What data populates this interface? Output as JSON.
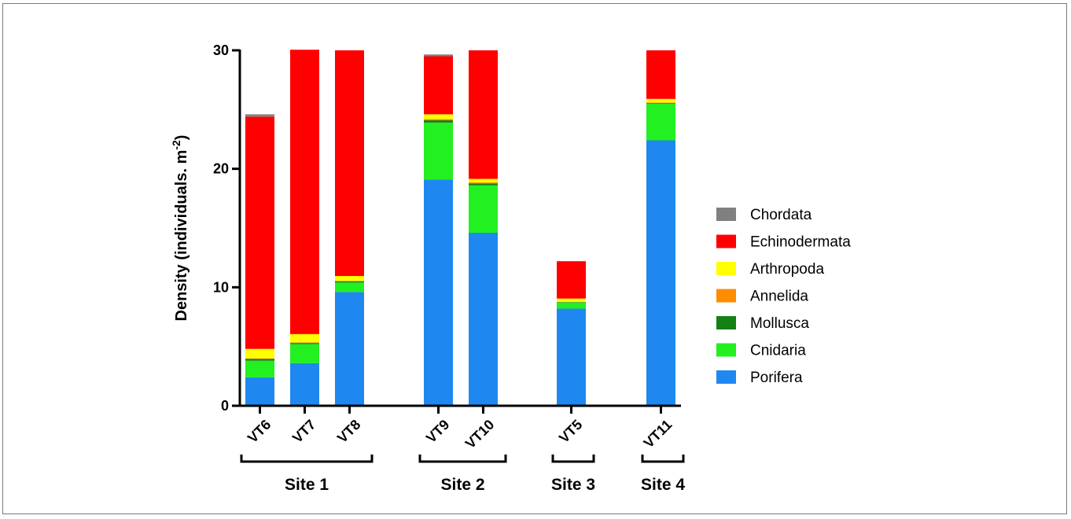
{
  "chart_data": {
    "type": "bar",
    "stacked": true,
    "ylabel_main": "Density (individuals. m",
    "ylabel_sup": "-2",
    "ylabel_end": ")",
    "ylim": [
      0,
      30
    ],
    "yticks": [
      0,
      10,
      20,
      30
    ],
    "categories": [
      "VT6",
      "VT7",
      "VT8",
      "VT9",
      "VT10",
      "VT5",
      "VT11"
    ],
    "groups": [
      {
        "label": "Site 1",
        "categories": [
          "VT6",
          "VT7",
          "VT8"
        ]
      },
      {
        "label": "Site 2",
        "categories": [
          "VT9",
          "VT10"
        ]
      },
      {
        "label": "Site 3",
        "categories": [
          "VT5"
        ]
      },
      {
        "label": "Site 4",
        "categories": [
          "VT11"
        ]
      }
    ],
    "series": [
      {
        "name": "Porifera",
        "color": "#1e88f0",
        "values": [
          2.4,
          3.6,
          9.6,
          19.1,
          14.6,
          8.2,
          22.4
        ]
      },
      {
        "name": "Cnidaria",
        "color": "#22f021",
        "values": [
          1.4,
          1.6,
          0.8,
          4.8,
          4.0,
          0.5,
          3.1
        ]
      },
      {
        "name": "Mollusca",
        "color": "#158015",
        "values": [
          0.15,
          0.1,
          0.1,
          0.2,
          0.15,
          0.05,
          0.05
        ]
      },
      {
        "name": "Annelida",
        "color": "#ff8c00",
        "values": [
          0.05,
          0.05,
          0.05,
          0.1,
          0.1,
          0.0,
          0.05
        ]
      },
      {
        "name": "Arthropoda",
        "color": "#ffff00",
        "values": [
          0.8,
          0.7,
          0.4,
          0.4,
          0.3,
          0.3,
          0.3
        ]
      },
      {
        "name": "Echinodermata",
        "color": "#ff0000",
        "values": [
          19.6,
          24.0,
          19.05,
          4.9,
          10.85,
          3.15,
          4.1
        ]
      },
      {
        "name": "Chordata",
        "color": "#808080",
        "values": [
          0.2,
          0.0,
          0.0,
          0.15,
          0.0,
          0.0,
          0.0
        ]
      }
    ],
    "legend": [
      "Chordata",
      "Echinodermata",
      "Arthropoda",
      "Annelida",
      "Mollusca",
      "Cnidaria",
      "Porifera"
    ],
    "legend_position": "right",
    "grid": false
  }
}
